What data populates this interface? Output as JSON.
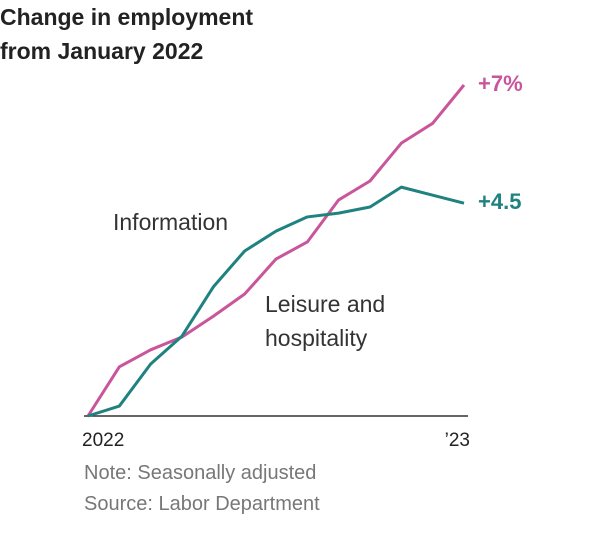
{
  "chart_data": {
    "type": "line",
    "title": "Change in employment from January 2022",
    "categories": [
      "2022",
      null,
      null,
      null,
      null,
      null,
      null,
      null,
      null,
      null,
      null,
      null,
      "’23"
    ],
    "series": [
      {
        "name": "Leisure and hospitality",
        "color": "#c9559a",
        "values": [
          0,
          1.04,
          1.4,
          1.67,
          2.11,
          2.58,
          3.32,
          3.68,
          4.57,
          4.97,
          5.77,
          6.19,
          7.0
        ],
        "value_labels": [
          null,
          null,
          null,
          null,
          null,
          null,
          null,
          null,
          null,
          null,
          null,
          null,
          "+7%"
        ]
      },
      {
        "name": "Information",
        "color": "#1f8280",
        "values": [
          0,
          0.21,
          1.1,
          1.69,
          2.73,
          3.49,
          3.91,
          4.21,
          4.29,
          4.42,
          4.84,
          4.67,
          4.5
        ],
        "value_labels": [
          null,
          null,
          null,
          null,
          null,
          null,
          null,
          null,
          null,
          null,
          null,
          null,
          "+4.5"
        ]
      }
    ],
    "ylim": [
      0,
      7
    ],
    "notes": [
      "Note: Seasonally adjusted",
      "Source: Labor Department"
    ]
  }
}
